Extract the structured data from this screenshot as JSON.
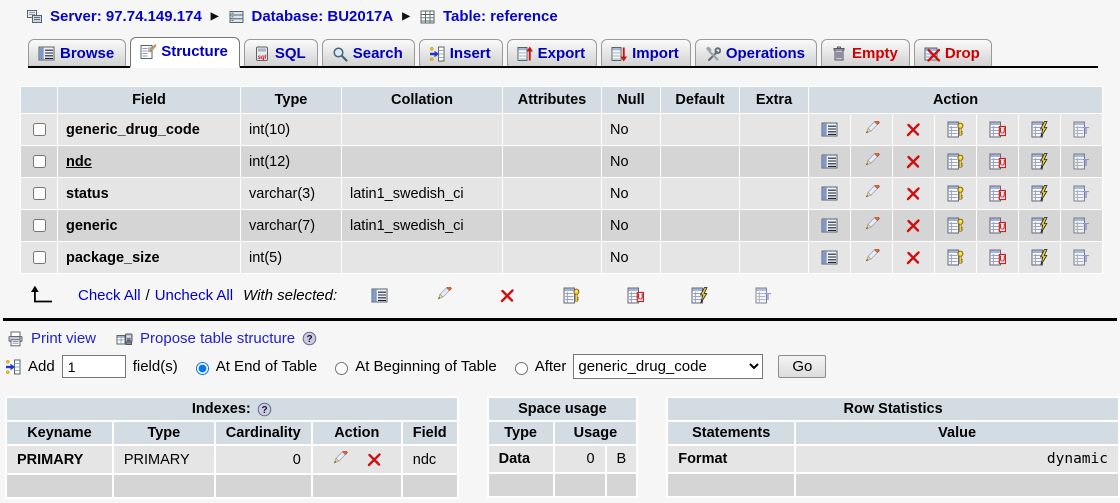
{
  "colors": {
    "header_bg": "#d3dce3",
    "row_odd": "#e5e5e5",
    "row_even": "#d5d5d5",
    "link_blue": "#0505c8",
    "danger_red": "#cc0000"
  },
  "breadcrumb": {
    "server": {
      "icon": "server-icon",
      "label": "Server: 97.74.149.174"
    },
    "database": {
      "icon": "database-icon",
      "label": "Database: BU2017A"
    },
    "table": {
      "icon": "table-icon",
      "label": "Table: reference"
    },
    "separator": "▶"
  },
  "tabs": [
    {
      "label": "Browse",
      "icon": "browse-icon",
      "active": false,
      "danger": false
    },
    {
      "label": "Structure",
      "icon": "structure-icon",
      "active": true,
      "danger": false
    },
    {
      "label": "SQL",
      "icon": "sql-icon",
      "active": false,
      "danger": false
    },
    {
      "label": "Search",
      "icon": "search-icon",
      "active": false,
      "danger": false
    },
    {
      "label": "Insert",
      "icon": "insert-icon",
      "active": false,
      "danger": false
    },
    {
      "label": "Export",
      "icon": "export-icon",
      "active": false,
      "danger": false
    },
    {
      "label": "Import",
      "icon": "import-icon",
      "active": false,
      "danger": false
    },
    {
      "label": "Operations",
      "icon": "operations-icon",
      "active": false,
      "danger": false
    },
    {
      "label": "Empty",
      "icon": "empty-icon",
      "active": false,
      "danger": true
    },
    {
      "label": "Drop",
      "icon": "droptbl-icon",
      "active": false,
      "danger": true
    }
  ],
  "structure_table": {
    "headers": [
      "Field",
      "Type",
      "Collation",
      "Attributes",
      "Null",
      "Default",
      "Extra",
      "Action"
    ],
    "rows": [
      {
        "field": "generic_drug_code",
        "type": "int(10)",
        "collation": "",
        "attributes": "",
        "null": "No",
        "default": "",
        "extra": "",
        "primary": false
      },
      {
        "field": "ndc",
        "type": "int(12)",
        "collation": "",
        "attributes": "",
        "null": "No",
        "default": "",
        "extra": "",
        "primary": true
      },
      {
        "field": "status",
        "type": "varchar(3)",
        "collation": "latin1_swedish_ci",
        "attributes": "",
        "null": "No",
        "default": "",
        "extra": "",
        "primary": false
      },
      {
        "field": "generic",
        "type": "varchar(7)",
        "collation": "latin1_swedish_ci",
        "attributes": "",
        "null": "No",
        "default": "",
        "extra": "",
        "primary": false
      },
      {
        "field": "package_size",
        "type": "int(5)",
        "collation": "",
        "attributes": "",
        "null": "No",
        "default": "",
        "extra": "",
        "primary": false
      }
    ],
    "action_icons": [
      {
        "name": "browse-icon"
      },
      {
        "name": "change-icon"
      },
      {
        "name": "drop-icon"
      },
      {
        "name": "primary-key-icon"
      },
      {
        "name": "unique-icon"
      },
      {
        "name": "index-icon"
      },
      {
        "name": "fulltext-icon"
      }
    ],
    "footer": {
      "check_all": "Check All",
      "separator": "/",
      "uncheck_all": "Uncheck All",
      "with_selected": "With selected:"
    }
  },
  "links_row": {
    "print_view": "Print view",
    "propose": "Propose table structure"
  },
  "add_field": {
    "label_add": "Add",
    "count": "1",
    "label_fields": "field(s)",
    "opt_end": "At End of Table",
    "opt_begin": "At Beginning of Table",
    "opt_after": "After",
    "after_value": "generic_drug_code",
    "go": "Go"
  },
  "indexes": {
    "title": "Indexes:",
    "headers": [
      "Keyname",
      "Type",
      "Cardinality",
      "Action",
      "Field"
    ],
    "rows": [
      {
        "keyname": "PRIMARY",
        "type": "PRIMARY",
        "cardinality": "0",
        "field": "ndc"
      }
    ]
  },
  "space_usage": {
    "title": "Space usage",
    "headers": [
      "Type",
      "Usage"
    ],
    "rows": [
      {
        "type": "Data",
        "value": "0",
        "unit": "B"
      }
    ]
  },
  "row_statistics": {
    "title": "Row Statistics",
    "headers": [
      "Statements",
      "Value"
    ],
    "rows": [
      {
        "statement": "Format",
        "value": "dynamic"
      }
    ]
  }
}
